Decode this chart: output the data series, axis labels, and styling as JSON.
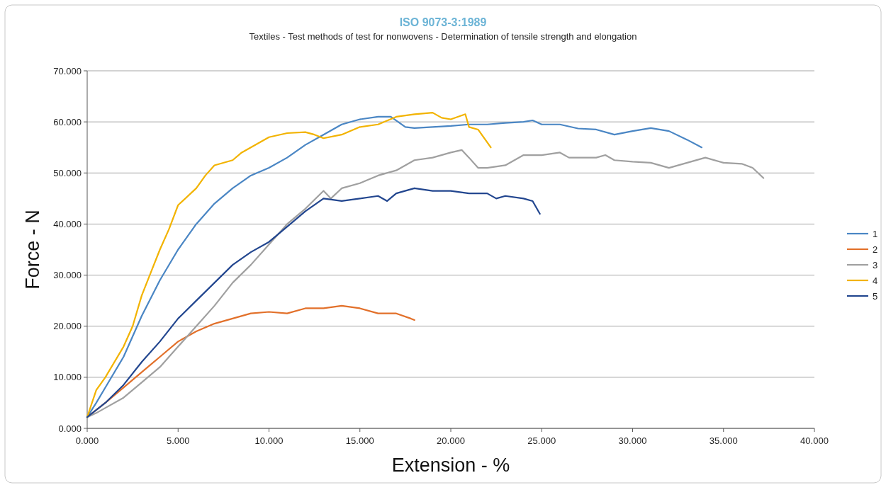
{
  "chart_data": {
    "type": "line",
    "title": "ISO 9073-3:1989",
    "subtitle": "Textiles - Test methods of test for nonwovens - Determination of tensile strength and elongation",
    "xlabel": "Extension - %",
    "ylabel": "Force - N",
    "xlim": [
      0,
      40
    ],
    "ylim": [
      0,
      70
    ],
    "xticks": [
      {
        "value": 0,
        "label": "0.000"
      },
      {
        "value": 5,
        "label": "5.000"
      },
      {
        "value": 10,
        "label": "10.000"
      },
      {
        "value": 15,
        "label": "15.000"
      },
      {
        "value": 20,
        "label": "20.000"
      },
      {
        "value": 25,
        "label": "25.000"
      },
      {
        "value": 30,
        "label": "30.000"
      },
      {
        "value": 35,
        "label": "35.000"
      },
      {
        "value": 40,
        "label": "40.000"
      }
    ],
    "yticks": [
      {
        "value": 0,
        "label": "0.000"
      },
      {
        "value": 10,
        "label": "10.000"
      },
      {
        "value": 20,
        "label": "20.000"
      },
      {
        "value": 30,
        "label": "30.000"
      },
      {
        "value": 40,
        "label": "40.000"
      },
      {
        "value": 50,
        "label": "50.000"
      },
      {
        "value": 60,
        "label": "60.000"
      },
      {
        "value": 70,
        "label": "70.000"
      }
    ],
    "grid": "y",
    "legend": "right",
    "marker": "none",
    "line_style": "solid",
    "series": [
      {
        "name": "1",
        "color": "#4a86c4",
        "x": [
          0,
          0.5,
          1,
          2,
          3,
          4,
          5,
          6,
          7,
          8,
          9,
          10,
          11,
          12,
          13,
          14,
          15,
          16,
          16.7,
          17.5,
          18,
          19,
          20,
          21,
          22,
          23,
          24,
          24.5,
          25,
          26,
          27,
          28,
          29,
          30,
          31,
          32,
          33,
          33.8
        ],
        "values": [
          2.2,
          5,
          8,
          14,
          22,
          29,
          35,
          40,
          44,
          47,
          49.5,
          51,
          53,
          55.5,
          57.5,
          59.5,
          60.5,
          61,
          61,
          59,
          58.8,
          59,
          59.2,
          59.5,
          59.5,
          59.8,
          60,
          60.3,
          59.5,
          59.5,
          58.7,
          58.5,
          57.5,
          58.2,
          58.8,
          58.2,
          56.5,
          55
        ]
      },
      {
        "name": "2",
        "color": "#e2702a",
        "x": [
          0,
          1,
          2,
          3,
          4,
          5,
          6,
          7,
          8,
          9,
          10,
          11,
          12,
          13,
          14,
          15,
          16,
          17,
          17.8,
          18
        ],
        "values": [
          2.2,
          5,
          8,
          11,
          14,
          17,
          19,
          20.5,
          21.5,
          22.5,
          22.8,
          22.5,
          23.5,
          23.5,
          24,
          23.5,
          22.5,
          22.5,
          21.5,
          21.2
        ]
      },
      {
        "name": "3",
        "color": "#a0a0a0",
        "x": [
          0,
          0.5,
          1,
          2,
          3,
          4,
          5,
          6,
          7,
          8,
          9,
          10,
          11,
          12,
          13,
          13.4,
          14,
          15,
          16,
          17,
          18,
          19,
          20,
          20.6,
          21,
          21.5,
          22,
          23,
          24,
          25,
          26,
          26.5,
          27,
          28,
          28.5,
          29,
          30,
          31,
          32,
          33,
          34,
          35,
          36,
          36.6,
          37.2
        ],
        "values": [
          2.2,
          3,
          4,
          6,
          9,
          12,
          16,
          20,
          24,
          28.5,
          32,
          36,
          40,
          43,
          46.5,
          45,
          47,
          48,
          49.5,
          50.5,
          52.5,
          53,
          54,
          54.5,
          53,
          51,
          51,
          51.5,
          53.5,
          53.5,
          54,
          53,
          53,
          53,
          53.5,
          52.5,
          52.2,
          52,
          51,
          52,
          53,
          52,
          51.8,
          51,
          49
        ]
      },
      {
        "name": "4",
        "color": "#f2b300",
        "x": [
          0,
          0.5,
          1,
          2,
          2.5,
          3,
          3.5,
          4,
          4.5,
          5,
          6,
          6.5,
          7,
          8,
          8.5,
          9,
          10,
          11,
          12,
          12.5,
          13,
          14,
          15,
          16,
          17,
          18,
          19,
          19.5,
          20,
          20.8,
          21,
          21.5,
          22.2
        ],
        "values": [
          2.2,
          7.5,
          10,
          16,
          20,
          26,
          30.5,
          35,
          39,
          43.7,
          47,
          49.5,
          51.5,
          52.5,
          54,
          55,
          57,
          57.8,
          58,
          57.5,
          56.8,
          57.5,
          59,
          59.5,
          61,
          61.5,
          61.8,
          60.8,
          60.5,
          61.5,
          59,
          58.5,
          55
        ]
      },
      {
        "name": "5",
        "color": "#22468f",
        "x": [
          0,
          1,
          2,
          3,
          4,
          5,
          6,
          7,
          8,
          9,
          10,
          11,
          12,
          13,
          14,
          15,
          16,
          16.5,
          17,
          18,
          19,
          20,
          21,
          22,
          22.5,
          23,
          24,
          24.5,
          24.9
        ],
        "values": [
          2.2,
          5,
          8.5,
          13,
          17,
          21.5,
          25,
          28.5,
          32,
          34.5,
          36.5,
          39.5,
          42.5,
          45,
          44.5,
          45,
          45.5,
          44.5,
          46,
          47,
          46.5,
          46.5,
          46,
          46,
          45,
          45.5,
          45,
          44.5,
          42
        ]
      }
    ]
  }
}
